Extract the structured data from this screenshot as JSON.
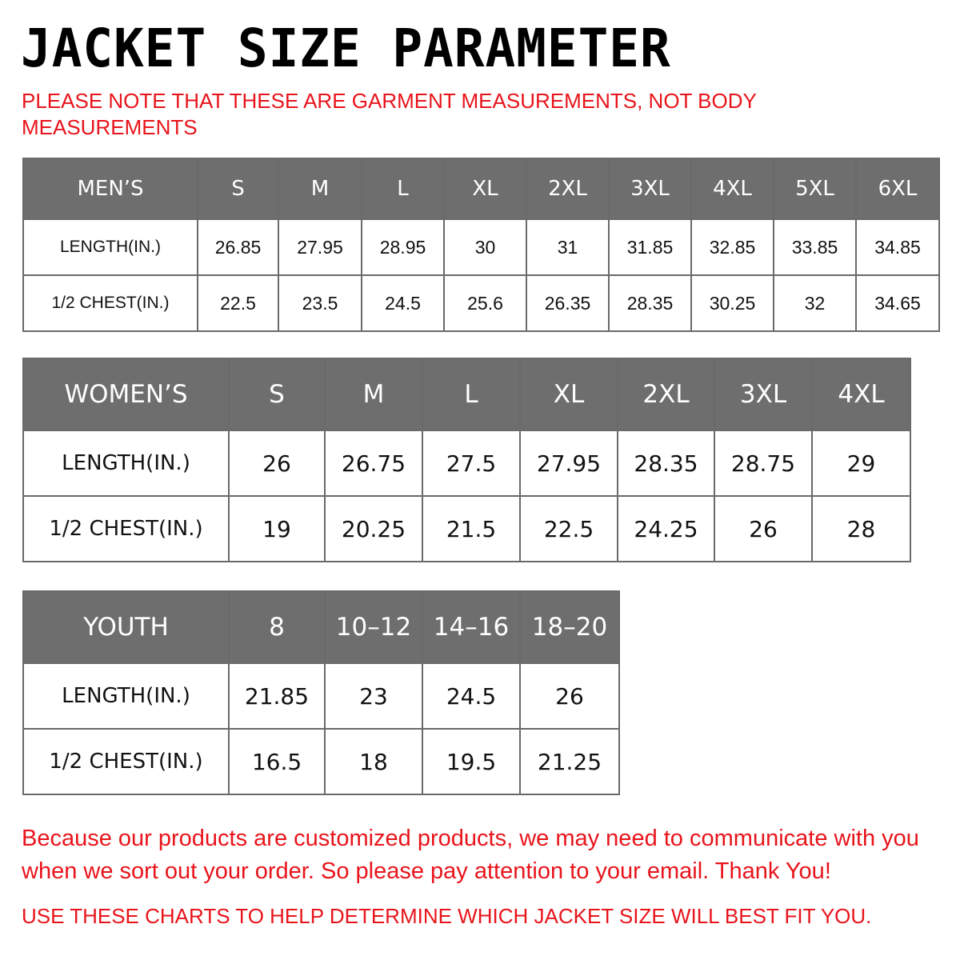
{
  "title": "JACKET SIZE PARAMETER",
  "note": "PLEASE NOTE THAT THESE ARE GARMENT MEASUREMENTS, NOT BODY MEASUREMENTS",
  "men": {
    "header": [
      "MEN’S",
      "S",
      "M",
      "L",
      "XL",
      "2XL",
      "3XL",
      "4XL",
      "5XL",
      "6XL"
    ],
    "rows": [
      [
        "LENGTH(IN.)",
        "26.85",
        "27.95",
        "28.95",
        "30",
        "31",
        "31.85",
        "32.85",
        "33.85",
        "34.85"
      ],
      [
        "1/2 CHEST(IN.)",
        "22.5",
        "23.5",
        "24.5",
        "25.6",
        "26.35",
        "28.35",
        "30.25",
        "32",
        "34.65"
      ]
    ]
  },
  "women": {
    "header": [
      "WOMEN’S",
      "S",
      "M",
      "L",
      "XL",
      "2XL",
      "3XL",
      "4XL"
    ],
    "rows": [
      [
        "LENGTH(IN.)",
        "26",
        "26.75",
        "27.5",
        "27.95",
        "28.35",
        "28.75",
        "29"
      ],
      [
        "1/2 CHEST(IN.)",
        "19",
        "20.25",
        "21.5",
        "22.5",
        "24.25",
        "26",
        "28"
      ]
    ]
  },
  "youth": {
    "header": [
      "YOUTH",
      "8",
      "10–12",
      "14–16",
      "18–20"
    ],
    "rows": [
      [
        "LENGTH(IN.)",
        "21.85",
        "23",
        "24.5",
        "26"
      ],
      [
        "1/2 CHEST(IN.)",
        "16.5",
        "18",
        "19.5",
        "21.25"
      ]
    ]
  },
  "footer": {
    "message": "Because our products are customized products, we may need to communicate with you when we sort out your order. So please pay attention to your email. Thank You!",
    "advice": "USE THESE CHARTS TO HELP DETERMINE WHICH JACKET SIZE WILL BEST FIT YOU."
  },
  "colors": {
    "header_bg": "#6e6e6e",
    "accent_red": "#e8141b"
  }
}
